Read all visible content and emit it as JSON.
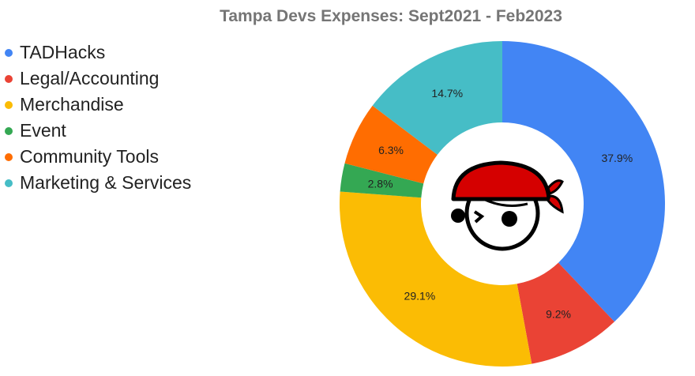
{
  "chart_data": {
    "type": "pie",
    "donut": true,
    "title": "Tampa Devs Expenses: Sept2021 - Feb2023",
    "legend_position": "left",
    "categories": [
      "TADHacks",
      "Legal/Accounting",
      "Merchandise",
      "Event",
      "Community Tools",
      "Marketing & Services"
    ],
    "values": [
      37.9,
      9.2,
      29.1,
      2.8,
      6.3,
      14.7
    ],
    "labels": [
      "37.9%",
      "9.2%",
      "29.1%",
      "2.8%",
      "6.3%",
      "14.7%"
    ],
    "colors": [
      "#4285f4",
      "#ea4335",
      "#fbbc04",
      "#34a853",
      "#ff6d01",
      "#46bdc6"
    ]
  },
  "logo": {
    "name": "pirate-mascot-logo",
    "bandana_color": "#d50000"
  }
}
